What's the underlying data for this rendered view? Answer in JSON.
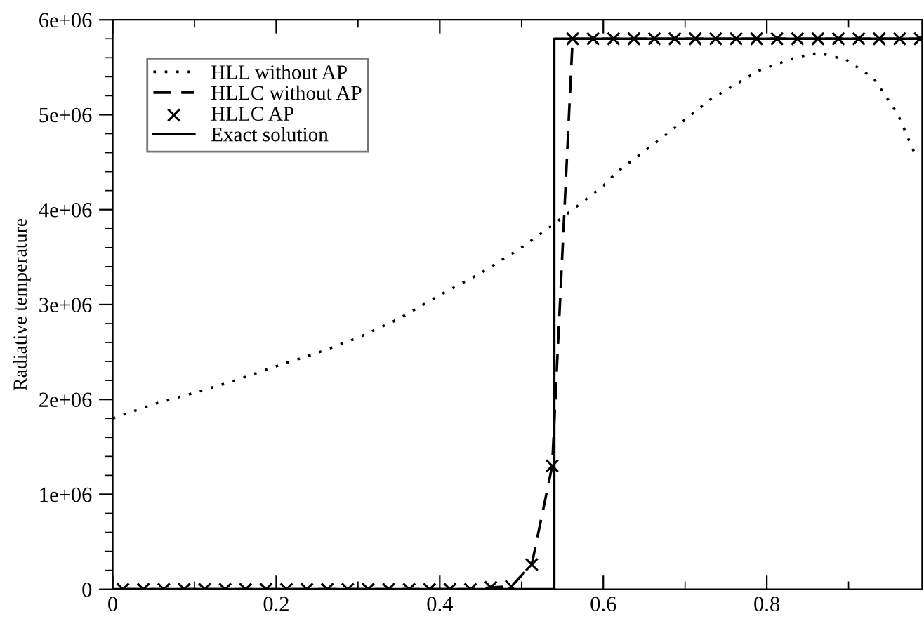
{
  "chart_data": {
    "type": "line",
    "ylabel": "Radiative temperature",
    "xlim": [
      0,
      0.99
    ],
    "ylim": [
      0,
      6000000
    ],
    "xticks": [
      0,
      0.2,
      0.4,
      0.6,
      0.8
    ],
    "yticks": [
      0,
      {
        "value": 1000000,
        "label": "1e+06"
      },
      {
        "value": 2000000,
        "label": "2e+06"
      },
      {
        "value": 3000000,
        "label": "3e+06"
      },
      {
        "value": 4000000,
        "label": "4e+06"
      },
      {
        "value": 5000000,
        "label": "5e+06"
      },
      {
        "value": 6000000,
        "label": "6e+06"
      }
    ],
    "legend": "top left",
    "grid": false,
    "series": [
      {
        "name": "HLL without AP",
        "line_style": "dotted",
        "color": "#000000",
        "x": [
          0,
          0.05,
          0.1,
          0.15,
          0.2,
          0.25,
          0.3,
          0.35,
          0.4,
          0.45,
          0.5,
          0.54,
          0.6,
          0.617,
          0.674,
          0.731,
          0.789,
          0.834,
          0.863,
          0.897,
          0.931,
          0.96,
          0.983
        ],
        "values": [
          1800000,
          1950000,
          2070000,
          2200000,
          2350000,
          2490000,
          2650000,
          2850000,
          3100000,
          3330000,
          3600000,
          3850000,
          4250000,
          4400000,
          4770000,
          5160000,
          5460000,
          5600000,
          5650000,
          5580000,
          5380000,
          5010000,
          4550000
        ]
      },
      {
        "name": "HLLC without AP",
        "line_style": "dashed",
        "color": "#000000",
        "x": [
          0.0125,
          0.4375,
          0.4625,
          0.4875,
          0.5125,
          0.5375,
          0.5625,
          0.9875
        ],
        "values": [
          0,
          0,
          20000,
          30000,
          260000,
          1300000,
          5800000,
          5800000
        ]
      },
      {
        "name": "HLLC AP",
        "type": "scatter",
        "marker": "cross",
        "color": "#000000",
        "x": [
          0.0125,
          0.0375,
          0.0625,
          0.0875,
          0.1125,
          0.1375,
          0.1625,
          0.1875,
          0.2125,
          0.2375,
          0.2625,
          0.2875,
          0.3125,
          0.3375,
          0.3625,
          0.3875,
          0.4125,
          0.4375,
          0.4625,
          0.4875,
          0.5125,
          0.5375,
          0.5625,
          0.5875,
          0.6125,
          0.6375,
          0.6625,
          0.6875,
          0.7125,
          0.7375,
          0.7625,
          0.7875,
          0.8125,
          0.8375,
          0.8625,
          0.8875,
          0.9125,
          0.9375,
          0.9625,
          0.9875
        ],
        "values": [
          0,
          0,
          0,
          0,
          0,
          0,
          0,
          0,
          0,
          0,
          0,
          0,
          0,
          0,
          0,
          0,
          0,
          0,
          20000,
          30000,
          260000,
          1300000,
          5800000,
          5800000,
          5800000,
          5800000,
          5800000,
          5800000,
          5800000,
          5800000,
          5800000,
          5800000,
          5800000,
          5800000,
          5800000,
          5800000,
          5800000,
          5800000,
          5800000,
          5800000
        ]
      },
      {
        "name": "Exact solution",
        "line_style": "solid",
        "color": "#000000",
        "x": [
          0,
          0.54,
          0.54,
          0.99
        ],
        "values": [
          0,
          0,
          5800000,
          5800000
        ]
      }
    ]
  }
}
